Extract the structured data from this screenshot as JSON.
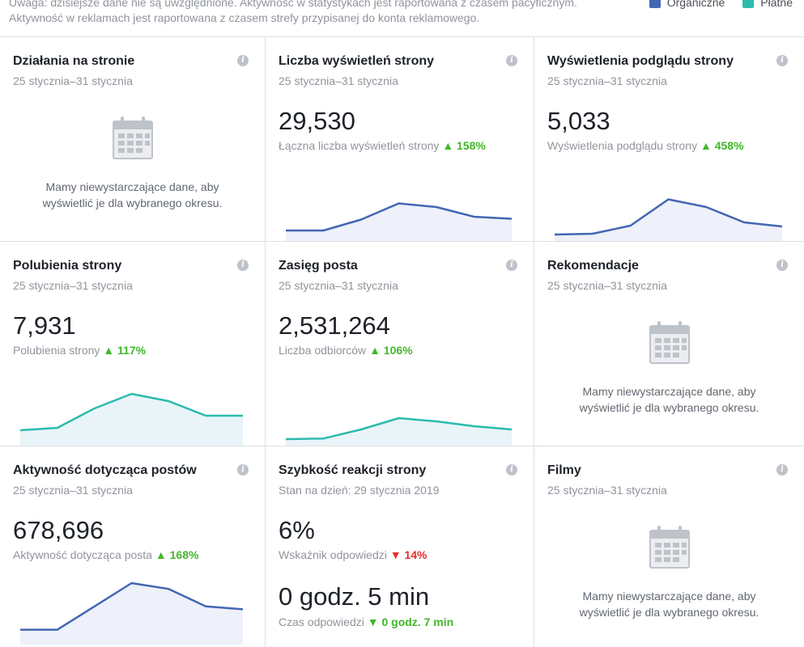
{
  "note": {
    "line1": "Uwaga: dzisiejsze dane nie są uwzględnione. Aktywność w statystykach jest raportowana z czasem pacyficznym.",
    "line2": "Aktywność w reklamach jest raportowana z czasem strefy przypisanej do konta reklamowego."
  },
  "legend": {
    "organic": "Organiczne",
    "paid": "Płatne",
    "organic_color": "#4267b2",
    "paid_color": "#2bbbad"
  },
  "empty_message_1": "Mamy niewystarczające dane, aby",
  "empty_message_2": "wyświetlić je dla wybranego okresu.",
  "cards": [
    {
      "title": "Działania na stronie",
      "sub": "25 stycznia–31 stycznia"
    },
    {
      "title": "Liczba wyświetleń strony",
      "sub": "25 stycznia–31 stycznia",
      "value": "29,530",
      "metric": "Łączna liczba wyświetleń strony",
      "change": "▲ 158%"
    },
    {
      "title": "Wyświetlenia podglądu strony",
      "sub": "25 stycznia–31 stycznia",
      "value": "5,033",
      "metric": "Wyświetlenia podglądu strony",
      "change": "▲ 458%"
    },
    {
      "title": "Polubienia strony",
      "sub": "25 stycznia–31 stycznia",
      "value": "7,931",
      "metric": "Polubienia strony",
      "change": "▲ 117%"
    },
    {
      "title": "Zasięg posta",
      "sub": "25 stycznia–31 stycznia",
      "value": "2,531,264",
      "metric": "Liczba odbiorców",
      "change": "▲ 106%"
    },
    {
      "title": "Rekomendacje",
      "sub": "25 stycznia–31 stycznia"
    },
    {
      "title": "Aktywność dotycząca postów",
      "sub": "25 stycznia–31 stycznia",
      "value": "678,696",
      "metric": "Aktywność dotycząca posta",
      "change": "▲ 168%"
    },
    {
      "title": "Szybkość reakcji strony",
      "sub": "Stan na dzień: 29 stycznia 2019",
      "value": "6%",
      "metric": "Wskaźnik odpowiedzi",
      "change": "▼ 14%",
      "value2": "0 godz. 5 min",
      "metric2": "Czas odpowiedzi",
      "change2": "▼ 0 godz. 7 min"
    },
    {
      "title": "Filmy",
      "sub": "25 stycznia–31 stycznia"
    }
  ],
  "sparklines": {
    "page_views": {
      "color": "#4267b2",
      "values": [
        0.18,
        0.18,
        0.45,
        0.85,
        0.76,
        0.52,
        0.47
      ]
    },
    "previews": {
      "color": "#4267b2",
      "values": [
        0.08,
        0.1,
        0.3,
        0.95,
        0.76,
        0.38,
        0.28
      ]
    },
    "likes": {
      "color": "#2bbbad",
      "values": [
        0.25,
        0.3,
        0.7,
        1.0,
        0.85,
        0.55,
        0.55
      ]
    },
    "reach": {
      "color": "#2bbbad",
      "values": [
        0.1,
        0.12,
        0.4,
        0.75,
        0.65,
        0.5,
        0.4
      ]
    },
    "engagement": {
      "color": "#4267b2",
      "values": [
        0.2,
        0.2,
        0.6,
        1.0,
        0.9,
        0.6,
        0.55
      ]
    }
  }
}
